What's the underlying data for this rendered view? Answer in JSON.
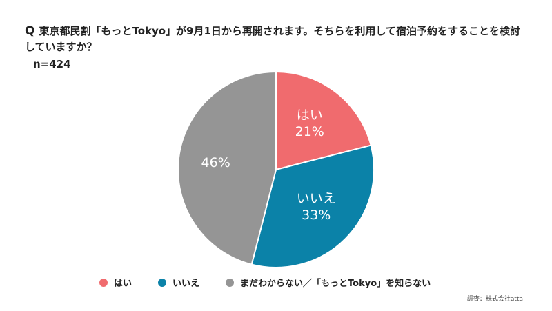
{
  "chart_data": {
    "type": "pie",
    "title": "東京都民割「もっとTokyo」が9月1日から再開されます。そちらを利用して宿泊予約をすることを検討していますか？",
    "question_mark": "Q",
    "sample_size": "n=424",
    "slices": [
      {
        "label": "はい",
        "slice_label": "はい",
        "value": 21,
        "value_label": "21%",
        "color": "#f06b6e"
      },
      {
        "label": "いいえ",
        "slice_label": "いいえ",
        "value": 33,
        "value_label": "33%",
        "color": "#0b82a8"
      },
      {
        "label": "まだわからない／「もっとTokyo」を知らない",
        "slice_label": "",
        "value": 46,
        "value_label": "46%",
        "color": "#959595"
      }
    ],
    "legend_position": "bottom",
    "source": "調査：株式会社atta"
  }
}
